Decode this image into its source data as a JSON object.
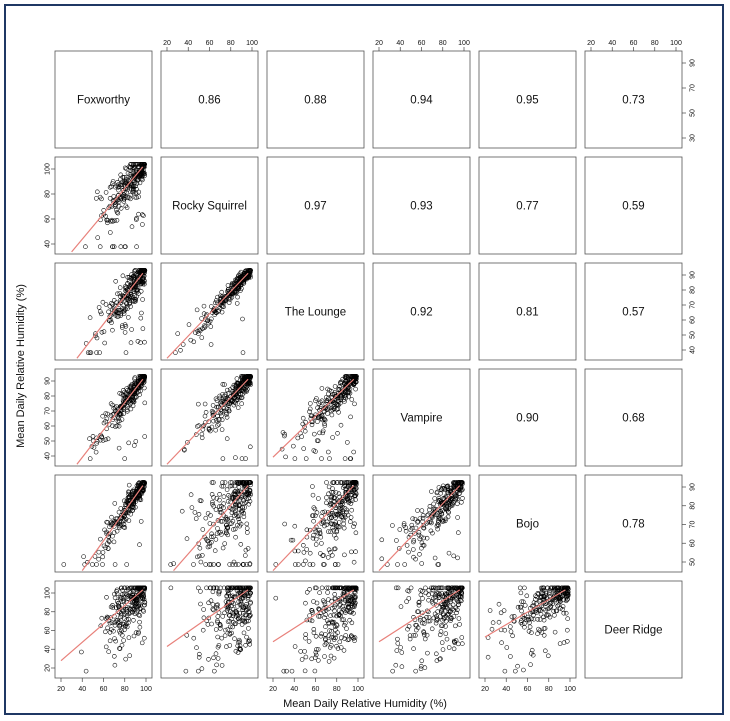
{
  "chart_data": {
    "type": "scatter",
    "title": "",
    "xlabel": "Mean Daily Relative Humidity (%)",
    "ylabel": "Mean Daily Relative Humidity (%)",
    "sites": [
      "Foxworthy",
      "Rocky Squirrel",
      "The Lounge",
      "Vampire",
      "Bojo",
      "Deer Ridge"
    ],
    "correlations": [
      {
        "row": 0,
        "col": 1,
        "value": "0.86"
      },
      {
        "row": 0,
        "col": 2,
        "value": "0.88"
      },
      {
        "row": 0,
        "col": 3,
        "value": "0.94"
      },
      {
        "row": 0,
        "col": 4,
        "value": "0.95"
      },
      {
        "row": 0,
        "col": 5,
        "value": "0.73"
      },
      {
        "row": 1,
        "col": 2,
        "value": "0.97"
      },
      {
        "row": 1,
        "col": 3,
        "value": "0.93"
      },
      {
        "row": 1,
        "col": 4,
        "value": "0.77"
      },
      {
        "row": 1,
        "col": 5,
        "value": "0.59"
      },
      {
        "row": 2,
        "col": 3,
        "value": "0.92"
      },
      {
        "row": 2,
        "col": 4,
        "value": "0.81"
      },
      {
        "row": 2,
        "col": 5,
        "value": "0.57"
      },
      {
        "row": 3,
        "col": 4,
        "value": "0.90"
      },
      {
        "row": 3,
        "col": 5,
        "value": "0.68"
      },
      {
        "row": 4,
        "col": 5,
        "value": "0.78"
      }
    ],
    "axis_ranges": [
      [
        20,
        100
      ],
      [
        35,
        100
      ],
      [
        40,
        100
      ],
      [
        40,
        100
      ],
      [
        45,
        100
      ],
      [
        10,
        100
      ]
    ],
    "top_axis_ticks": [
      {
        "col": 1,
        "labels": [
          "20",
          "40",
          "60",
          "80",
          "100"
        ]
      },
      {
        "col": 3,
        "labels": [
          "20",
          "40",
          "60",
          "80",
          "100"
        ]
      },
      {
        "col": 5,
        "labels": [
          "20",
          "40",
          "60",
          "80",
          "100"
        ]
      }
    ],
    "bottom_axis_ticks": [
      {
        "col": 0,
        "labels": [
          "20",
          "40",
          "60",
          "80",
          "100"
        ]
      },
      {
        "col": 2,
        "labels": [
          "20",
          "40",
          "60",
          "80",
          "100"
        ]
      },
      {
        "col": 4,
        "labels": [
          "20",
          "40",
          "60",
          "80",
          "100"
        ]
      }
    ],
    "left_axis_ticks": [
      {
        "row": 1,
        "labels": [
          "40",
          "60",
          "80",
          "100"
        ]
      },
      {
        "row": 3,
        "labels": [
          "40",
          "50",
          "60",
          "70",
          "80",
          "90"
        ]
      },
      {
        "row": 5,
        "labels": [
          "20",
          "40",
          "60",
          "80",
          "100"
        ]
      }
    ],
    "right_axis_ticks": [
      {
        "row": 0,
        "labels": [
          "30",
          "50",
          "70",
          "90"
        ]
      },
      {
        "row": 2,
        "labels": [
          "40",
          "50",
          "60",
          "70",
          "80",
          "90"
        ]
      },
      {
        "row": 4,
        "labels": [
          "50",
          "60",
          "70",
          "80",
          "90"
        ]
      }
    ],
    "point_style": "open-circle",
    "point_color": "#000000",
    "fit_line_color": "#e8807a",
    "grid": false,
    "legend": "none"
  }
}
